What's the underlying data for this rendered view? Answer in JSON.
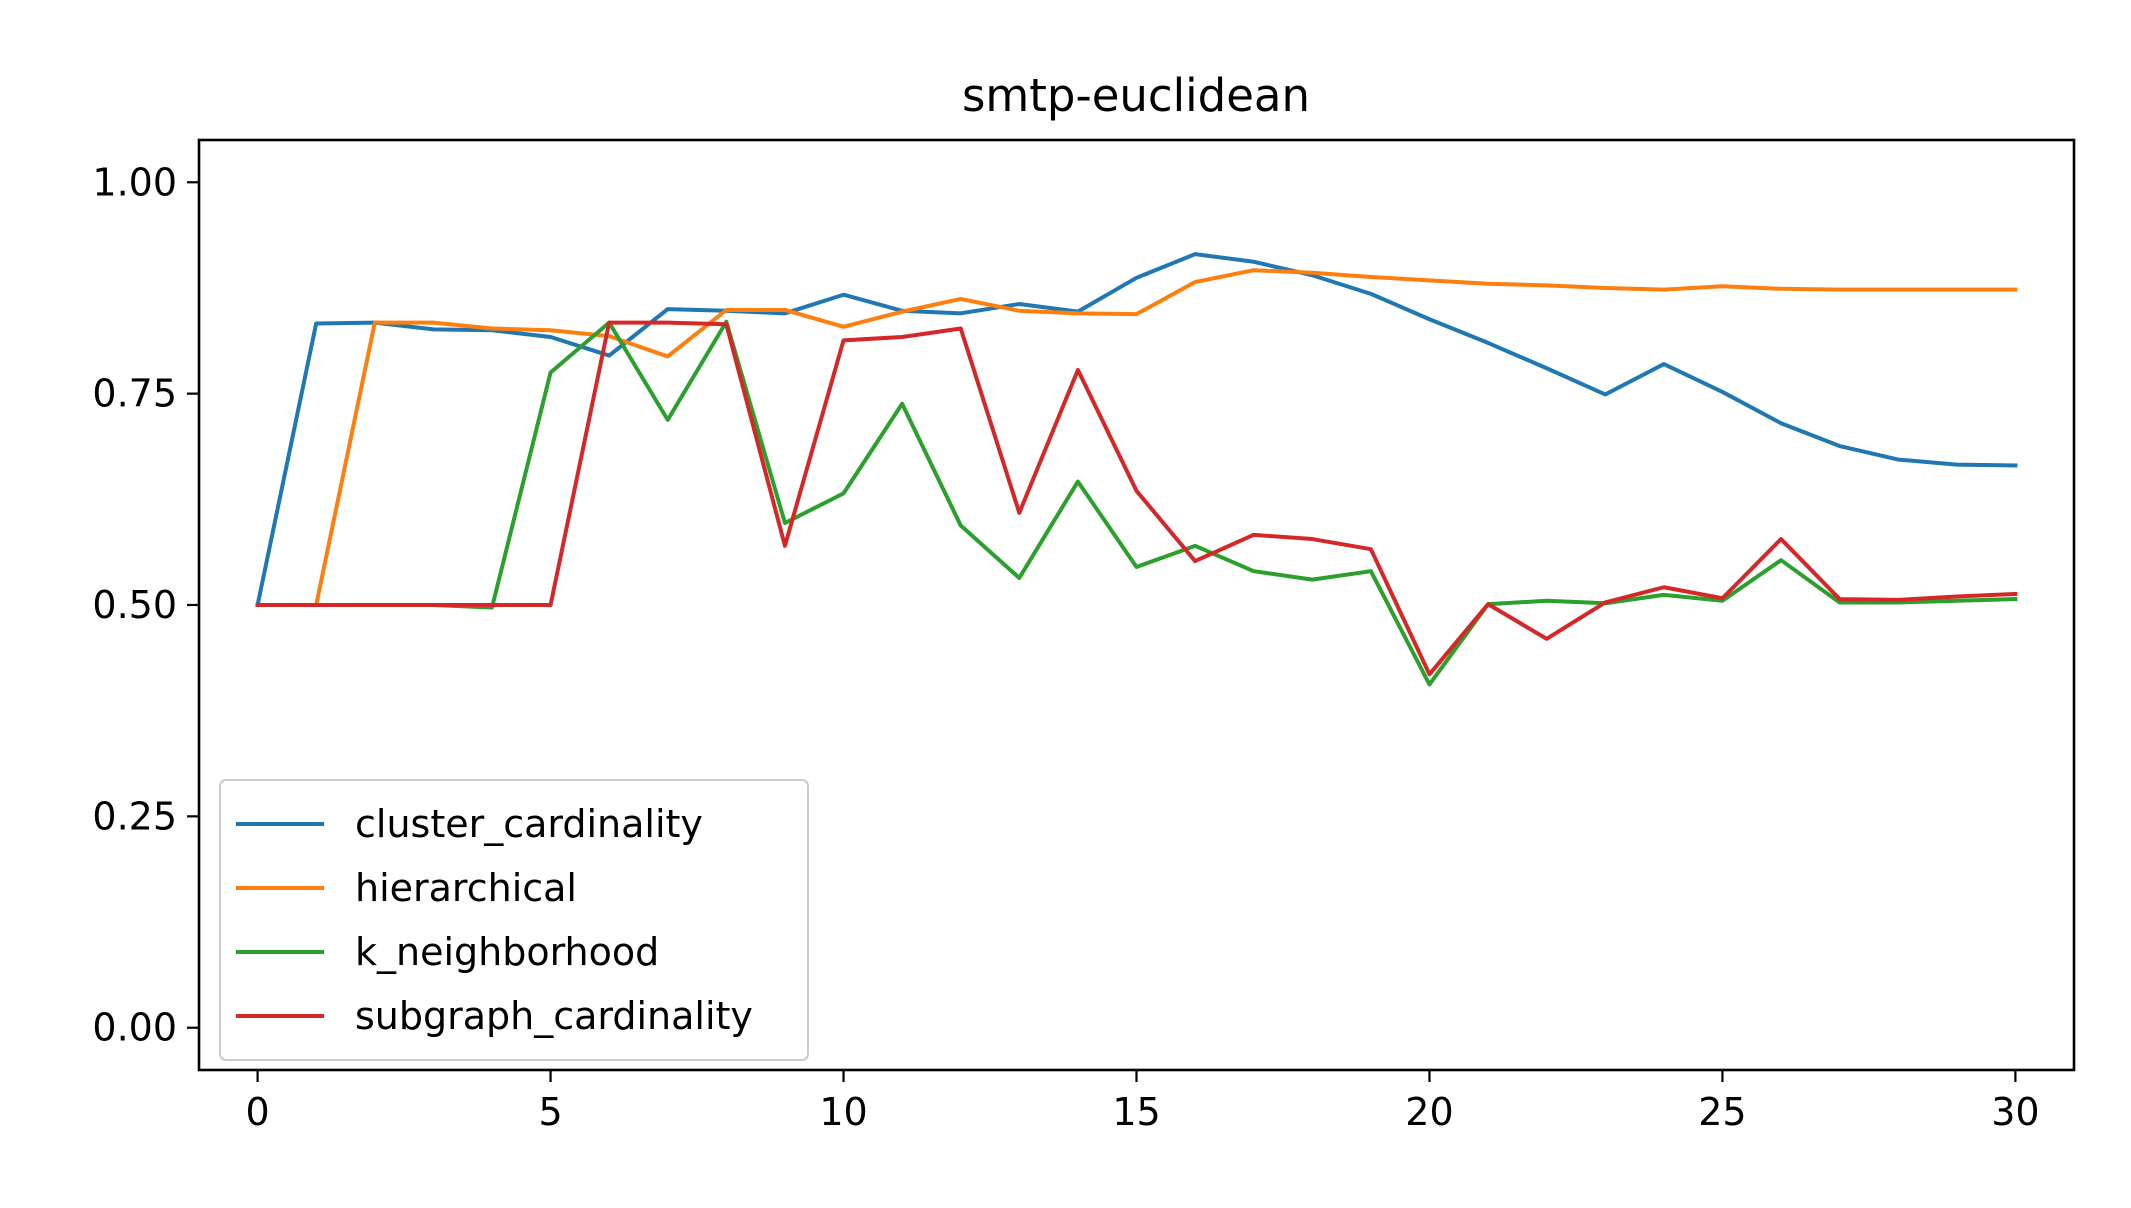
{
  "chart_data": {
    "type": "line",
    "title": "smtp-euclidean",
    "xlabel": "",
    "ylabel": "",
    "xlim": [
      -1,
      31
    ],
    "ylim": [
      -0.05,
      1.05
    ],
    "xticks": [
      0,
      5,
      10,
      15,
      20,
      25,
      30
    ],
    "xtick_labels": [
      "0",
      "5",
      "10",
      "15",
      "20",
      "25",
      "30"
    ],
    "yticks": [
      0.0,
      0.25,
      0.5,
      0.75,
      1.0
    ],
    "ytick_labels": [
      "0.00",
      "0.25",
      "0.50",
      "0.75",
      "1.00"
    ],
    "grid": false,
    "legend_position": "lower-left",
    "x": [
      0,
      1,
      2,
      3,
      4,
      5,
      6,
      7,
      8,
      9,
      10,
      11,
      12,
      13,
      14,
      15,
      16,
      17,
      18,
      19,
      20,
      21,
      22,
      23,
      24,
      25,
      26,
      27,
      28,
      29,
      30
    ],
    "series": [
      {
        "name": "cluster_cardinality",
        "color": "#1f77b4",
        "values": [
          0.5,
          0.833,
          0.834,
          0.826,
          0.825,
          0.817,
          0.795,
          0.85,
          0.848,
          0.845,
          0.867,
          0.848,
          0.845,
          0.856,
          0.847,
          0.887,
          0.915,
          0.906,
          0.89,
          0.868,
          0.838,
          0.81,
          0.78,
          0.749,
          0.785,
          0.752,
          0.715,
          0.688,
          0.672,
          0.666,
          0.665
        ]
      },
      {
        "name": "hierarchical",
        "color": "#ff7f0e",
        "values": [
          0.5,
          0.5,
          0.834,
          0.834,
          0.827,
          0.825,
          0.818,
          0.794,
          0.849,
          0.849,
          0.829,
          0.847,
          0.862,
          0.848,
          0.845,
          0.844,
          0.882,
          0.896,
          0.893,
          0.888,
          0.884,
          0.88,
          0.878,
          0.875,
          0.873,
          0.877,
          0.874,
          0.873,
          0.873,
          0.873,
          0.873
        ]
      },
      {
        "name": "k_neighborhood",
        "color": "#2ca02c",
        "values": [
          0.5,
          0.5,
          0.5,
          0.5,
          0.497,
          0.775,
          0.834,
          0.719,
          0.835,
          0.597,
          0.632,
          0.738,
          0.594,
          0.532,
          0.646,
          0.545,
          0.57,
          0.54,
          0.53,
          0.54,
          0.406,
          0.501,
          0.505,
          0.502,
          0.512,
          0.505,
          0.553,
          0.503,
          0.503,
          0.505,
          0.507
        ]
      },
      {
        "name": "subgraph_cardinality",
        "color": "#d62728",
        "values": [
          0.5,
          0.5,
          0.5,
          0.5,
          0.5,
          0.5,
          0.834,
          0.834,
          0.832,
          0.57,
          0.813,
          0.817,
          0.827,
          0.609,
          0.778,
          0.635,
          0.552,
          0.583,
          0.578,
          0.566,
          0.418,
          0.501,
          0.46,
          0.503,
          0.521,
          0.508,
          0.578,
          0.507,
          0.506,
          0.51,
          0.513
        ]
      }
    ]
  }
}
